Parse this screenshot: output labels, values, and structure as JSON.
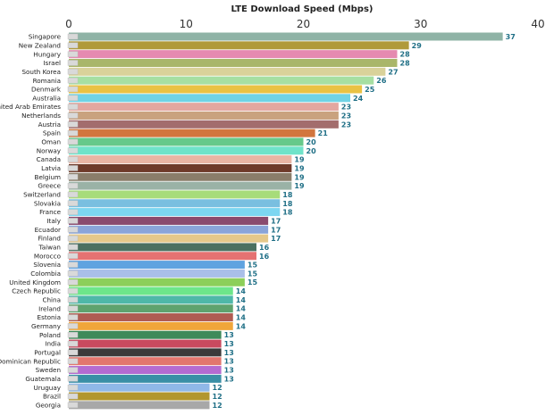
{
  "chart_data": {
    "type": "bar",
    "orientation": "horizontal",
    "title": "LTE Download Speed (Mbps)",
    "xlabel": "",
    "ylabel": "",
    "xlim": [
      0,
      40
    ],
    "xticks": [
      0,
      10,
      20,
      30,
      40
    ],
    "grid": false,
    "legend": "none",
    "categories": [
      "Singapore",
      "New Zealand",
      "Hungary",
      "Israel",
      "South Korea",
      "Romania",
      "Denmark",
      "Australia",
      "United Arab Emirates",
      "Netherlands",
      "Austria",
      "Spain",
      "Oman",
      "Norway",
      "Canada",
      "Latvia",
      "Belgium",
      "Greece",
      "Switzerland",
      "Slovakia",
      "France",
      "Italy",
      "Ecuador",
      "Finland",
      "Taiwan",
      "Morocco",
      "Slovenia",
      "Colombia",
      "United Kingdom",
      "Czech Republic",
      "China",
      "Ireland",
      "Estonia",
      "Germany",
      "Poland",
      "India",
      "Portugal",
      "Dominican Republic",
      "Sweden",
      "Guatemala",
      "Uruguay",
      "Brazil",
      "Georgia"
    ],
    "values": [
      37,
      29,
      28,
      28,
      27,
      26,
      25,
      24,
      23,
      23,
      23,
      21,
      20,
      20,
      19,
      19,
      19,
      19,
      18,
      18,
      18,
      17,
      17,
      17,
      16,
      16,
      15,
      15,
      15,
      14,
      14,
      14,
      14,
      14,
      13,
      13,
      13,
      13,
      13,
      13,
      12,
      12,
      12
    ],
    "colors": [
      "#8fb3a6",
      "#b09a3a",
      "#e58ab0",
      "#a9b66a",
      "#d9d29a",
      "#a6dfa2",
      "#e9c244",
      "#6fd3e6",
      "#e3a7a0",
      "#c9a27e",
      "#a36d6d",
      "#d2763e",
      "#66c98a",
      "#6fe3c9",
      "#e9b5a4",
      "#6e3a2a",
      "#8a7d6a",
      "#9ab2a6",
      "#a7dc7a",
      "#79bfe0",
      "#7cd6f1",
      "#8a4a6e",
      "#8aa4d9",
      "#e5c88a",
      "#4b7060",
      "#e57272",
      "#5fa3e0",
      "#a9bfe8",
      "#8ccf5a",
      "#6de68a",
      "#4fb8a8",
      "#5fa36e",
      "#b05c52",
      "#f0a63a",
      "#3f8a5a",
      "#c94a5f",
      "#3a3a3a",
      "#e2766e",
      "#b56bd1",
      "#3a8fa6",
      "#8fb8e8",
      "#b2962e",
      "#a8a8a8"
    ]
  }
}
